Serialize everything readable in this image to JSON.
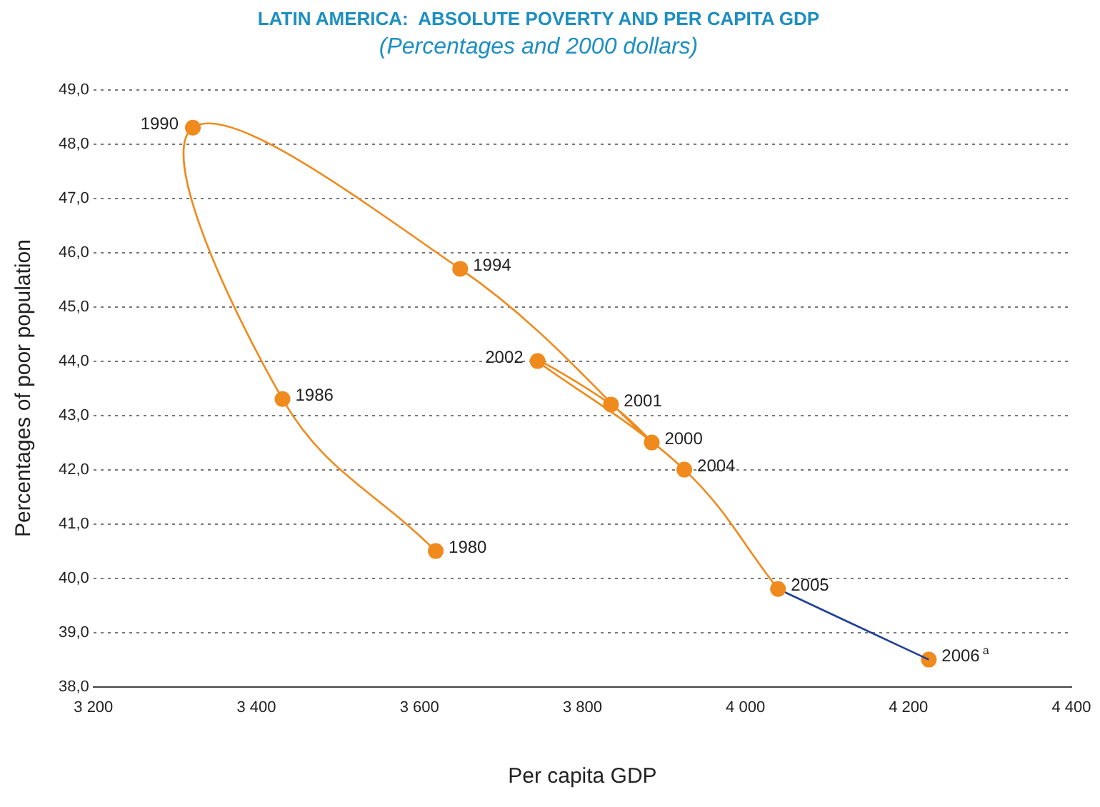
{
  "chart_data": {
    "type": "line",
    "title": "LATIN AMERICA:  ABSOLUTE POVERTY AND PER CAPITA GDP",
    "subtitle": "(Percentages and 2000 dollars)",
    "xlabel": "Per capita GDP",
    "ylabel": "Percentages of poor population",
    "series": [
      {
        "color": "#f08a1c",
        "x": [
          3620,
          3432,
          3322,
          3650,
          3885,
          3835,
          3745,
          3925,
          4040
        ],
        "values": [
          40.5,
          43.3,
          48.3,
          45.7,
          42.5,
          43.2,
          44.0,
          42.0,
          39.8
        ],
        "marker": "circle"
      },
      {
        "color": "#1f3f99",
        "x": [
          4040,
          4225
        ],
        "values": [
          39.8,
          38.5
        ],
        "marker": "none"
      },
      {
        "color": "#f08a1c",
        "x": [
          4225
        ],
        "values": [
          38.5
        ],
        "marker": "circle"
      }
    ],
    "annotations": [
      {
        "text": "1980",
        "x": 3620,
        "y": 40.5
      },
      {
        "text": "1986",
        "x": 3432,
        "y": 43.3
      },
      {
        "text": "1990",
        "x": 3322,
        "y": 48.3
      },
      {
        "text": "1994",
        "x": 3650,
        "y": 45.7
      },
      {
        "text": "2000",
        "x": 3885,
        "y": 42.5
      },
      {
        "text": "2001",
        "x": 3835,
        "y": 43.2
      },
      {
        "text": "2002",
        "x": 3745,
        "y": 44.0
      },
      {
        "text": "2004",
        "x": 3925,
        "y": 42.0
      },
      {
        "text": "2005",
        "x": 4040,
        "y": 39.8
      },
      {
        "text": "2006$^{a}$",
        "x": 4225,
        "y": 38.5
      }
    ],
    "xlim": [
      3200,
      4400
    ],
    "xticks": [
      {
        "value": 3200,
        "label": "3 200"
      },
      {
        "value": 3400,
        "label": "3 400"
      },
      {
        "value": 3600,
        "label": "3 600"
      },
      {
        "value": 3800,
        "label": "3 800"
      },
      {
        "value": 4000,
        "label": "4 000"
      },
      {
        "value": 4200,
        "label": "4 200"
      },
      {
        "value": 4400,
        "label": "4 400"
      }
    ],
    "ylim": [
      38,
      49
    ],
    "yticks": [
      {
        "value": 38,
        "label": "38,0"
      },
      {
        "value": 39,
        "label": "39,0"
      },
      {
        "value": 40,
        "label": "40,0"
      },
      {
        "value": 41,
        "label": "41,0"
      },
      {
        "value": 42,
        "label": "42,0"
      },
      {
        "value": 43,
        "label": "43,0"
      },
      {
        "value": 44,
        "label": "44,0"
      },
      {
        "value": 45,
        "label": "45,0"
      },
      {
        "value": 46,
        "label": "46,0"
      },
      {
        "value": 47,
        "label": "47,0"
      },
      {
        "value": 48,
        "label": "48,0"
      },
      {
        "value": 49,
        "label": "49,0"
      }
    ],
    "grid": "y",
    "legend": false,
    "line_style": "solid"
  }
}
